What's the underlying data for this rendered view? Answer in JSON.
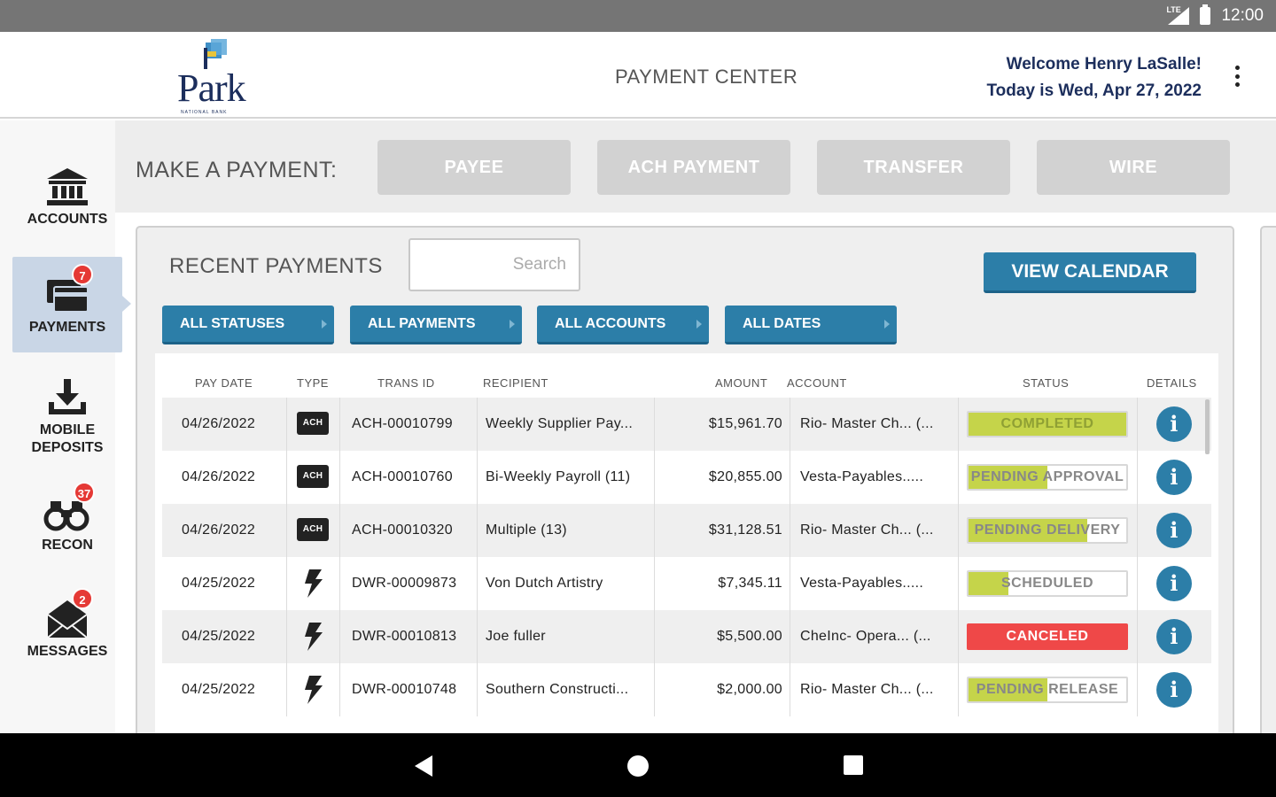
{
  "statusbar": {
    "network": "LTE",
    "time": "12:00"
  },
  "header": {
    "logo_word": "Park",
    "logo_tagline": "NATIONAL BANK",
    "title": "PAYMENT CENTER",
    "welcome": "Welcome Henry LaSalle!",
    "date_line": "Today is Wed, Apr 27, 2022"
  },
  "sidebar": {
    "items": [
      {
        "label": "ACCOUNTS",
        "icon": "bank-icon"
      },
      {
        "label": "PAYMENTS",
        "icon": "payments-icon",
        "badge": "7",
        "active": true
      },
      {
        "label": "MOBILE",
        "label2": "DEPOSITS",
        "icon": "download-icon"
      },
      {
        "label": "RECON",
        "icon": "binoculars-icon",
        "badge": "37"
      },
      {
        "label": "MESSAGES",
        "icon": "envelope-icon",
        "badge": "2"
      }
    ]
  },
  "make_payment": {
    "label": "MAKE A PAYMENT:",
    "buttons": [
      "PAYEE",
      "ACH PAYMENT",
      "TRANSFER",
      "WIRE"
    ]
  },
  "recent": {
    "title": "RECENT PAYMENTS",
    "search_placeholder": "Search",
    "view_calendar": "VIEW CALENDAR",
    "filters": [
      "ALL STATUSES",
      "ALL PAYMENTS",
      "ALL ACCOUNTS",
      "ALL DATES"
    ],
    "columns": [
      "PAY DATE",
      "TYPE",
      "TRANS ID",
      "RECIPIENT",
      "AMOUNT",
      "ACCOUNT",
      "STATUS",
      "DETAILS"
    ],
    "type_ach_label": "ACH",
    "rows": [
      {
        "date": "04/26/2022",
        "type": "ACH",
        "trans_id": "ACH-00010799",
        "recipient": "Weekly Supplier Pay...",
        "amount": "$15,961.70",
        "account": "Rio- Master Ch...  (...",
        "status": "COMPLETED",
        "progress": 1.0,
        "color": "#c5d44a"
      },
      {
        "date": "04/26/2022",
        "type": "ACH",
        "trans_id": "ACH-00010760",
        "recipient": "Bi-Weekly Payroll (11)",
        "amount": "$20,855.00",
        "account": "Vesta-Payables.....",
        "status": "PENDING APPROVAL",
        "progress": 0.5,
        "color": "#c5d44a"
      },
      {
        "date": "04/26/2022",
        "type": "ACH",
        "trans_id": "ACH-00010320",
        "recipient": "Multiple (13)",
        "amount": "$31,128.51",
        "account": "Rio- Master Ch...  (...",
        "status": "PENDING DELIVERY",
        "progress": 0.75,
        "color": "#c5d44a"
      },
      {
        "date": "04/25/2022",
        "type": "WIRE",
        "trans_id": "DWR-00009873",
        "recipient": "Von Dutch Artistry",
        "amount": "$7,345.11",
        "account": "Vesta-Payables.....",
        "status": "SCHEDULED",
        "progress": 0.25,
        "color": "#c5d44a"
      },
      {
        "date": "04/25/2022",
        "type": "WIRE",
        "trans_id": "DWR-00010813",
        "recipient": "Joe fuller",
        "amount": "$5,500.00",
        "account": "CheInc- Opera...  (...",
        "status": "CANCELED",
        "progress": 1.0,
        "color": "#ef4848"
      },
      {
        "date": "04/25/2022",
        "type": "WIRE",
        "trans_id": "DWR-00010748",
        "recipient": "Southern Constructi...",
        "amount": "$2,000.00",
        "account": "Rio- Master Ch...  (...",
        "status": "PENDING RELEASE",
        "progress": 0.5,
        "color": "#c5d44a"
      }
    ]
  },
  "colors": {
    "accent": "#2c7ea8",
    "navy": "#1c2e5c",
    "lime": "#c5d44a",
    "red": "#ef4848"
  }
}
